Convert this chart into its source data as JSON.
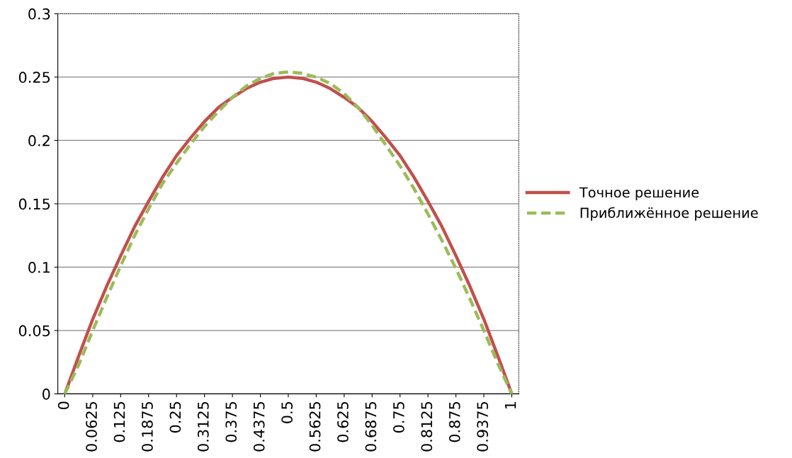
{
  "chart_data": {
    "type": "line",
    "categories": [
      "0",
      null,
      "0.0625",
      null,
      "0.125",
      null,
      "0.1875",
      null,
      "0.25",
      null,
      "0.3125",
      null,
      "0.375",
      null,
      "0.4375",
      null,
      "0.5",
      null,
      "0.5625",
      null,
      "0.625",
      null,
      "0.6875",
      null,
      "0.75",
      null,
      "0.8125",
      null,
      "0.875",
      null,
      "0.9375",
      null,
      "1"
    ],
    "series": [
      {
        "name": "Точное решение",
        "color": "#c0504d",
        "line_style": "solid",
        "values": [
          0,
          0.03,
          0.059,
          0.085,
          0.109,
          0.132,
          0.152,
          0.171,
          0.188,
          0.202,
          0.215,
          0.226,
          0.234,
          0.241,
          0.246,
          0.249,
          0.25,
          0.249,
          0.246,
          0.241,
          0.234,
          0.226,
          0.215,
          0.202,
          0.188,
          0.171,
          0.152,
          0.132,
          0.109,
          0.085,
          0.059,
          0.03,
          0
        ]
      },
      {
        "name": "Приближённое решение",
        "color": "#9bbb59",
        "line_style": "dashed",
        "values": [
          0,
          0.023,
          0.05,
          0.076,
          0.101,
          0.125,
          0.146,
          0.166,
          0.182,
          0.197,
          0.211,
          0.223,
          0.234,
          0.243,
          0.249,
          0.253,
          0.254,
          0.253,
          0.25,
          0.245,
          0.237,
          0.226,
          0.212,
          0.196,
          0.18,
          0.162,
          0.142,
          0.121,
          0.099,
          0.075,
          0.05,
          0.024,
          0
        ]
      }
    ],
    "ylim": [
      0,
      0.3
    ],
    "yticks": [
      0,
      0.05,
      0.1,
      0.15,
      0.2,
      0.25,
      0.3
    ],
    "grid": "y",
    "legend": "right",
    "marker": "none"
  }
}
